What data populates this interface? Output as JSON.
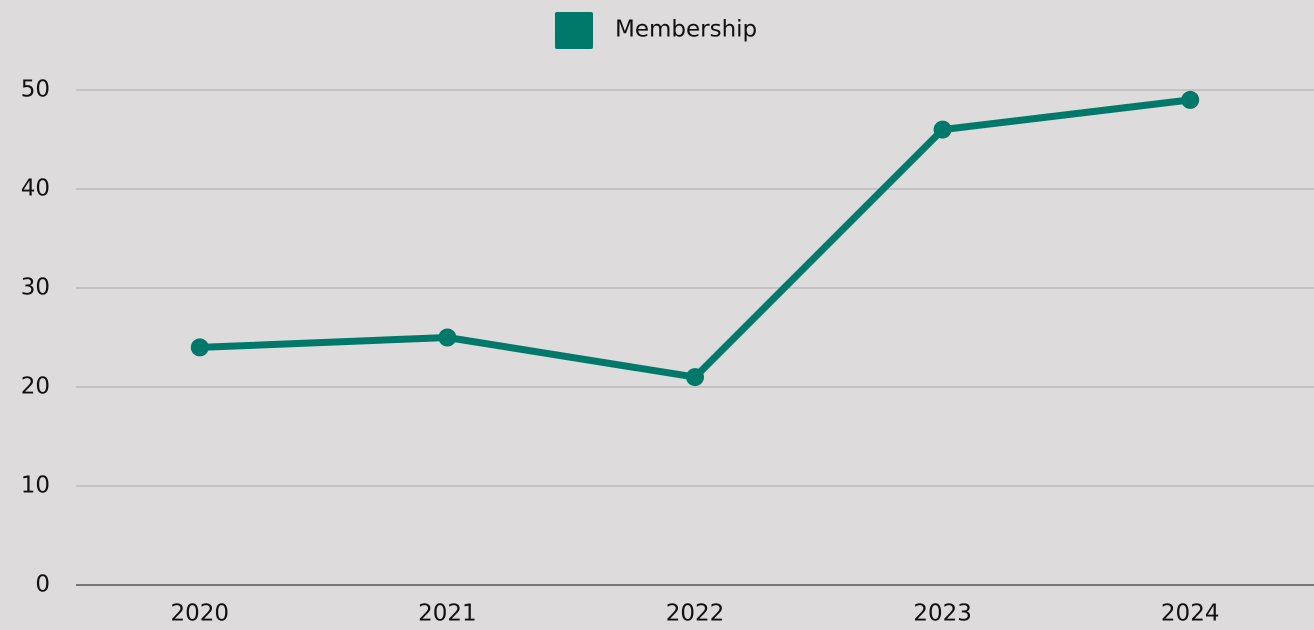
{
  "chart_data": {
    "type": "line",
    "categories": [
      "2020",
      "2021",
      "2022",
      "2023",
      "2024"
    ],
    "series": [
      {
        "name": "Membership",
        "color": "#00796b",
        "values": [
          24,
          25,
          21,
          46,
          49
        ]
      }
    ],
    "ylim": [
      0,
      50
    ],
    "yticks": [
      0,
      10,
      20,
      30,
      40,
      50
    ],
    "grid": true,
    "legend": "top"
  }
}
